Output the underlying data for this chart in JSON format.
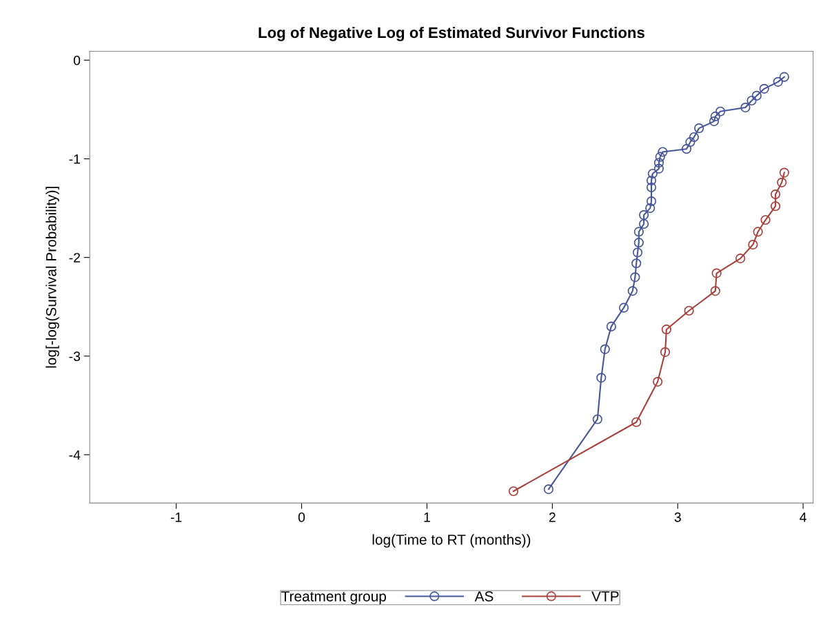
{
  "chart_data": {
    "type": "line",
    "title": "Log of Negative Log of Estimated Survivor Functions",
    "xlabel": "log(Time to RT (months))",
    "ylabel": "log[-log(Survival Probability)]",
    "legend_title": "Treatment group",
    "legend": "bottom",
    "marker": "circle",
    "line_style": "solid",
    "grid": false,
    "xlim": [
      -1.69,
      4.08
    ],
    "ylim": [
      -4.49,
      0.09
    ],
    "xticks": [
      -1,
      0,
      1,
      2,
      3,
      4
    ],
    "yticks": [
      -4,
      -3,
      -2,
      -1,
      0
    ],
    "series": [
      {
        "name": "AS",
        "color": "#44559a",
        "x": [
          1.97,
          2.36,
          2.39,
          2.42,
          2.47,
          2.57,
          2.64,
          2.66,
          2.67,
          2.68,
          2.69,
          2.69,
          2.73,
          2.73,
          2.78,
          2.79,
          2.79,
          2.79,
          2.8,
          2.85,
          2.85,
          2.86,
          2.88,
          3.07,
          3.1,
          3.13,
          3.17,
          3.29,
          3.3,
          3.34,
          3.54,
          3.59,
          3.63,
          3.69,
          3.8,
          3.85
        ],
        "values": [
          -4.35,
          -3.64,
          -3.22,
          -2.93,
          -2.7,
          -2.51,
          -2.34,
          -2.2,
          -2.06,
          -1.95,
          -1.85,
          -1.74,
          -1.66,
          -1.57,
          -1.5,
          -1.43,
          -1.29,
          -1.22,
          -1.15,
          -1.1,
          -1.04,
          -0.98,
          -0.93,
          -0.9,
          -0.83,
          -0.78,
          -0.69,
          -0.62,
          -0.57,
          -0.52,
          -0.48,
          -0.41,
          -0.36,
          -0.29,
          -0.22,
          -0.17
        ]
      },
      {
        "name": "VTP",
        "color": "#a8403a",
        "x": [
          1.69,
          2.67,
          2.84,
          2.9,
          2.91,
          3.09,
          3.3,
          3.31,
          3.5,
          3.6,
          3.64,
          3.7,
          3.78,
          3.78,
          3.83,
          3.85
        ],
        "values": [
          -4.37,
          -3.67,
          -3.26,
          -2.96,
          -2.73,
          -2.54,
          -2.34,
          -2.16,
          -2.01,
          -1.87,
          -1.74,
          -1.62,
          -1.48,
          -1.36,
          -1.24,
          -1.14
        ]
      }
    ]
  }
}
